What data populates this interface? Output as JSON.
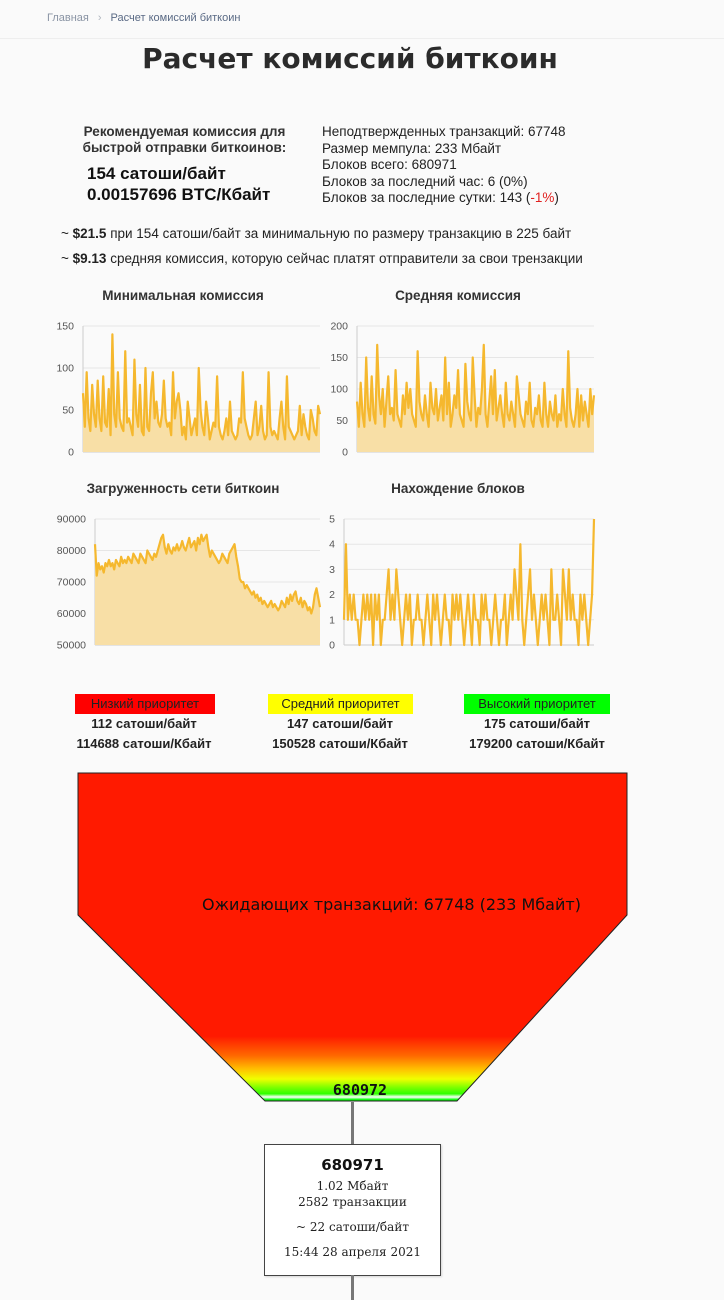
{
  "breadcrumb": {
    "home": "Главная",
    "current": "Расчет комиссий биткоин"
  },
  "page_title": "Расчет комиссий биткоин",
  "recommendation": {
    "label": "Рекомендуемая комиссия для быстрой отправки биткоинов:",
    "sat_per_byte": "154 сатоши/байт",
    "btc_per_kb": "0.00157696 BTC/Кбайт"
  },
  "stats": {
    "unconfirmed": "Неподтвержденных транзакций: 67748",
    "mempool": "Размер мемпула: 233 Мбайт",
    "blocks_total": "Блоков всего: 680971",
    "blocks_hour": "Блоков за последний час: 6 (0%)",
    "blocks_day_prefix": "Блоков за последние сутки: 143 (",
    "blocks_day_change": "-1%",
    "blocks_day_suffix": ")"
  },
  "estimates": [
    {
      "prefix": "~ ",
      "amount": "$21.5",
      "text": " при 154 сатоши/байт за минимальную по размеру транзакцию в 225 байт"
    },
    {
      "prefix": "~ ",
      "amount": "$9.13",
      "text": " средняя комиссия, которую сейчас платят отправители за свои трензакции"
    }
  ],
  "colors": {
    "line": "#f5b82e",
    "area": "#f8dfa6",
    "low": "#ff0000",
    "medium": "#ffff00",
    "high": "#00ff00",
    "funnel": "#ff1a00"
  },
  "chart_data": [
    {
      "type": "area",
      "title": "Минимальная комиссия",
      "ylim": [
        0,
        150
      ],
      "yticks": [
        0,
        50,
        100,
        150
      ],
      "values": [
        70,
        30,
        95,
        40,
        25,
        80,
        45,
        30,
        85,
        40,
        25,
        90,
        35,
        30,
        75,
        20,
        140,
        45,
        30,
        95,
        40,
        30,
        25,
        120,
        35,
        40,
        30,
        20,
        110,
        45,
        30,
        80,
        25,
        20,
        100,
        30,
        25,
        70,
        95,
        40,
        60,
        35,
        30,
        45,
        85,
        40,
        30,
        35,
        20,
        95,
        40,
        60,
        70,
        50,
        20,
        30,
        15,
        60,
        40,
        20,
        30,
        40,
        20,
        100,
        50,
        30,
        20,
        60,
        40,
        15,
        25,
        35,
        30,
        90,
        30,
        20,
        15,
        25,
        40,
        20,
        60,
        25,
        20,
        15,
        20,
        40,
        35,
        95,
        40,
        30,
        20,
        15,
        20,
        40,
        60,
        20,
        30,
        55,
        25,
        15,
        20,
        95,
        30,
        20,
        25,
        20,
        15,
        40,
        60,
        30,
        15,
        90,
        30,
        25,
        20,
        15,
        20,
        25,
        55,
        20,
        45,
        30,
        20,
        15,
        50,
        40,
        25,
        20,
        55,
        45
      ]
    },
    {
      "type": "area",
      "title": "Средняя комиссия",
      "ylim": [
        0,
        200
      ],
      "yticks": [
        0,
        50,
        100,
        150,
        200
      ],
      "values": [
        80,
        40,
        110,
        60,
        40,
        150,
        70,
        50,
        120,
        60,
        45,
        170,
        90,
        60,
        100,
        40,
        80,
        120,
        60,
        70,
        50,
        130,
        60,
        50,
        40,
        90,
        60,
        110,
        70,
        100,
        60,
        50,
        40,
        160,
        80,
        60,
        50,
        90,
        60,
        40,
        110,
        70,
        60,
        100,
        50,
        70,
        90,
        50,
        150,
        60,
        110,
        40,
        60,
        90,
        70,
        130,
        60,
        50,
        40,
        140,
        80,
        60,
        50,
        150,
        90,
        40,
        70,
        60,
        100,
        170,
        60,
        40,
        80,
        120,
        60,
        130,
        50,
        70,
        90,
        60,
        40,
        110,
        60,
        50,
        80,
        60,
        40,
        120,
        90,
        60,
        50,
        40,
        80,
        60,
        110,
        50,
        40,
        70,
        60,
        90,
        50,
        40,
        110,
        60,
        40,
        80,
        60,
        50,
        90,
        40,
        60,
        50,
        100,
        60,
        40,
        160,
        70,
        50,
        40,
        60,
        100,
        40,
        90,
        50,
        80,
        60,
        40,
        100,
        60,
        90
      ]
    },
    {
      "type": "area",
      "title": "Загруженность сети биткоин",
      "ylim": [
        50000,
        90000
      ],
      "yticks": [
        50000,
        60000,
        70000,
        80000,
        90000
      ],
      "values": [
        82000,
        72000,
        76000,
        74000,
        75000,
        73000,
        76000,
        75000,
        77000,
        75000,
        76000,
        74000,
        77000,
        76000,
        75000,
        78000,
        76000,
        77000,
        76000,
        78000,
        77000,
        76000,
        79000,
        78000,
        77000,
        76000,
        79000,
        78000,
        77000,
        76000,
        80000,
        79000,
        78000,
        77000,
        79000,
        78000,
        80000,
        82000,
        84000,
        85000,
        81000,
        79000,
        82000,
        80000,
        79000,
        81000,
        80000,
        82000,
        80000,
        81000,
        83000,
        81000,
        80000,
        82000,
        84000,
        81000,
        82000,
        83000,
        80000,
        84000,
        82000,
        85000,
        83000,
        84000,
        85000,
        81000,
        78000,
        80000,
        79000,
        78000,
        77000,
        76000,
        77000,
        79000,
        78000,
        77000,
        76000,
        79000,
        80000,
        81000,
        82000,
        78000,
        75000,
        71000,
        70000,
        70000,
        68000,
        69000,
        68000,
        67000,
        66000,
        67000,
        65000,
        66000,
        64000,
        65000,
        63000,
        64000,
        63000,
        62000,
        63000,
        64000,
        62000,
        63000,
        62000,
        61000,
        62000,
        64000,
        63000,
        62000,
        65000,
        63000,
        66000,
        64000,
        66000,
        67000,
        64000,
        63000,
        65000,
        62000,
        64000,
        63000,
        61000,
        62000,
        60000,
        62000,
        66000,
        68000,
        65000,
        62000
      ]
    },
    {
      "type": "line",
      "title": "Нахождение блоков",
      "ylim": [
        0,
        5
      ],
      "yticks": [
        0,
        1,
        2,
        3,
        4,
        5
      ],
      "values": [
        1,
        4,
        1,
        2,
        1,
        2,
        1,
        1,
        0,
        1,
        2,
        1,
        2,
        1,
        2,
        0,
        2,
        1,
        2,
        0,
        1,
        1,
        2,
        3,
        1,
        2,
        1,
        3,
        2,
        1,
        0,
        1,
        2,
        1,
        2,
        0,
        1,
        1,
        2,
        1,
        1,
        0,
        1,
        2,
        1,
        0,
        2,
        1,
        2,
        1,
        0,
        1,
        2,
        1,
        1,
        0,
        2,
        1,
        2,
        1,
        2,
        1,
        0,
        1,
        2,
        1,
        0,
        2,
        1,
        1,
        0,
        2,
        1,
        2,
        1,
        1,
        0,
        1,
        2,
        1,
        0,
        1,
        1,
        2,
        0,
        1,
        2,
        1,
        3,
        2,
        1,
        4,
        1,
        0,
        1,
        2,
        3,
        1,
        2,
        1,
        0,
        1,
        2,
        1,
        2,
        1,
        0,
        3,
        1,
        1,
        2,
        1,
        0,
        3,
        2,
        1,
        3,
        1,
        2,
        1,
        1,
        0,
        2,
        1,
        2,
        1,
        0,
        1,
        2,
        5
      ]
    }
  ],
  "priorities": [
    {
      "label": "Низкий приоритет",
      "sat_byte": "112 сатоши/байт",
      "sat_kb": "114688 сатоши/Кбайт"
    },
    {
      "label": "Средний приоритет",
      "sat_byte": "147 сатоши/байт",
      "sat_kb": "150528 сатоши/Кбайт"
    },
    {
      "label": "Высокий приоритет",
      "sat_byte": "175 сатоши/байт",
      "sat_kb": "179200 сатоши/Кбайт"
    }
  ],
  "funnel": {
    "pending": "Ожидающих транзакций: 67748 (233 Мбайт)",
    "next_block": "680972"
  },
  "last_block": {
    "height": "680971",
    "size": "1.02 Мбайт",
    "tx_count": "2582 транзакции",
    "fee": "~ 22 сатоши/байт",
    "time": "15:44 28 апреля 2021"
  }
}
